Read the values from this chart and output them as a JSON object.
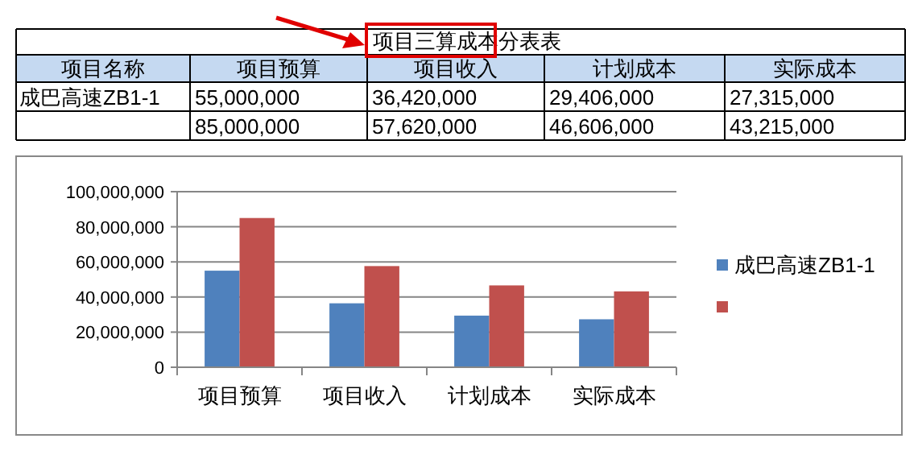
{
  "chart_data": {
    "type": "bar",
    "title": "项目三算成本分表表",
    "categories": [
      "项目预算",
      "项目收入",
      "计划成本",
      "实际成本"
    ],
    "series": [
      {
        "name": "成巴高速ZB1-1",
        "color": "#4f81bd",
        "values": [
          55000000,
          36420000,
          29406000,
          27315000
        ]
      },
      {
        "color": "#c0504d",
        "values": [
          85000000,
          57620000,
          46606000,
          43215000
        ]
      }
    ],
    "annotations": [
      "项目名称",
      "55,000,000",
      "36,420,000",
      "29,406,000",
      "27,315,000",
      "85,000,000",
      "57,620,000",
      "46,606,000",
      "43,215,000"
    ],
    "ylim": [
      0,
      100000000
    ],
    "yticks": [
      {
        "value": 0,
        "label": "0"
      },
      {
        "value": 20000000,
        "label": "20,000,000"
      },
      {
        "value": 40000000,
        "label": "40,000,000"
      },
      {
        "value": 60000000,
        "label": "60,000,000"
      },
      {
        "value": 80000000,
        "label": "80,000,000"
      },
      {
        "value": 100000000,
        "label": "100,000,000"
      }
    ],
    "grid": "y",
    "legend": "right"
  }
}
